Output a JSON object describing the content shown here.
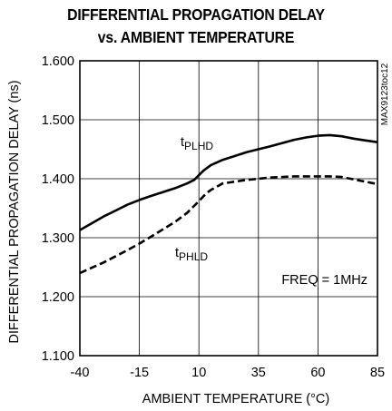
{
  "chart_data": {
    "type": "line",
    "title": [
      "DIFFERENTIAL PROPAGATION DELAY",
      "vs. AMBIENT TEMPERATURE"
    ],
    "xlabel": "AMBIENT TEMPERATURE (°C)",
    "ylabel": "DIFFERENTIAL PROPAGATION DELAY (ns)",
    "xlim": [
      -40,
      85
    ],
    "ylim": [
      1.1,
      1.6
    ],
    "xticks": [
      -40,
      -15,
      10,
      35,
      60,
      85
    ],
    "xtick_labels": [
      "-40",
      "-15",
      "10",
      "35",
      "60",
      "85"
    ],
    "yticks": [
      1.1,
      1.2,
      1.3,
      1.4,
      1.5,
      1.6
    ],
    "ytick_labels": [
      "1.100",
      "1.200",
      "1.300",
      "1.400",
      "1.500",
      "1.600"
    ],
    "grid": true,
    "annotation": "FREQ = 1MHz",
    "side_label": "MAX9123toc12",
    "series": [
      {
        "name": "tPLHD",
        "label_main": "t",
        "label_sub": "PLHD",
        "style": "solid",
        "x": [
          -40,
          -30,
          -20,
          -15,
          -10,
          0,
          5,
          8,
          10,
          12,
          15,
          20,
          30,
          40,
          50,
          55,
          60,
          65,
          70,
          75,
          80,
          85
        ],
        "y": [
          1.313,
          1.336,
          1.356,
          1.364,
          1.371,
          1.384,
          1.392,
          1.398,
          1.406,
          1.414,
          1.423,
          1.432,
          1.445,
          1.455,
          1.466,
          1.47,
          1.473,
          1.474,
          1.472,
          1.468,
          1.465,
          1.462
        ]
      },
      {
        "name": "tPHLD",
        "label_main": "t",
        "label_sub": "PHLD",
        "style": "dashed",
        "x": [
          -40,
          -30,
          -20,
          -15,
          -10,
          0,
          5,
          10,
          13,
          15,
          20,
          30,
          40,
          50,
          60,
          65,
          70,
          75,
          80,
          85
        ],
        "y": [
          1.24,
          1.258,
          1.279,
          1.29,
          1.302,
          1.327,
          1.342,
          1.362,
          1.375,
          1.381,
          1.392,
          1.398,
          1.402,
          1.404,
          1.404,
          1.404,
          1.403,
          1.399,
          1.395,
          1.391
        ]
      }
    ]
  }
}
